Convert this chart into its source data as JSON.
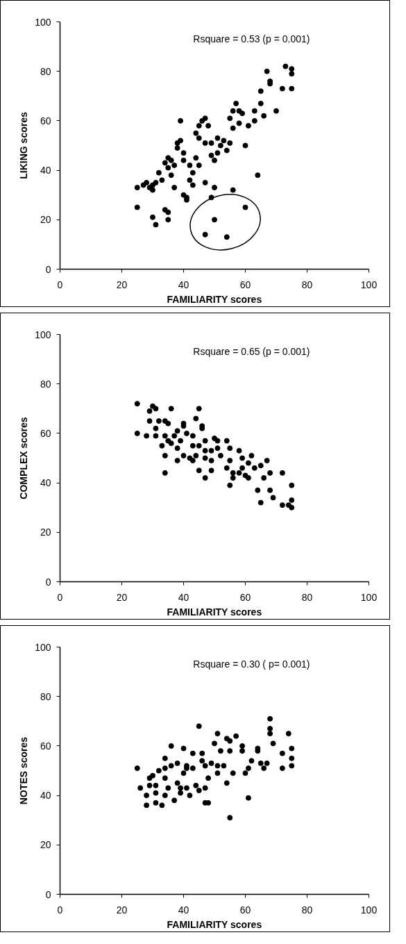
{
  "chart_data": [
    {
      "type": "scatter",
      "xlabel": "FAMILIARITY scores",
      "ylabel": "LIKING scores",
      "annotations": [
        "Rsquare = 0.53 (p = 0.001)"
      ],
      "marker": "circle",
      "grid": false,
      "xlim": [
        0,
        100
      ],
      "ylim": [
        0,
        100
      ],
      "xticks": [
        0,
        20,
        40,
        60,
        80,
        100
      ],
      "yticks": [
        0,
        20,
        40,
        60,
        80,
        100
      ],
      "series": [
        {
          "color": "#000000",
          "x": [
            25,
            25,
            27,
            28,
            29,
            30,
            30,
            31,
            32,
            33,
            30,
            31,
            34,
            35,
            35,
            34,
            35,
            35,
            36,
            36,
            37,
            37,
            38,
            38,
            39,
            39,
            40,
            40,
            40,
            41,
            41,
            42,
            42,
            43,
            43,
            44,
            44,
            45,
            45,
            45,
            46,
            47,
            47,
            47,
            48,
            49,
            49,
            50,
            51,
            51,
            52,
            53,
            54,
            55,
            55,
            56,
            56,
            57,
            58,
            58,
            59,
            60,
            61,
            63,
            63,
            64,
            65,
            65,
            66,
            67,
            68,
            68,
            70,
            72,
            73,
            75,
            75,
            75,
            49,
            50,
            56,
            47,
            50,
            54,
            60
          ],
          "values": [
            25,
            33,
            34,
            35,
            33,
            32,
            34,
            35,
            39,
            36,
            21,
            18,
            24,
            23,
            20,
            43,
            41,
            45,
            44,
            38,
            42,
            33,
            49,
            51,
            52,
            60,
            47,
            44,
            30,
            29,
            28,
            42,
            36,
            39,
            34,
            55,
            45,
            58,
            53,
            42,
            60,
            61,
            51,
            35,
            58,
            46,
            51,
            44,
            47,
            53,
            50,
            52,
            48,
            51,
            61,
            57,
            64,
            67,
            64,
            59,
            63,
            50,
            58,
            64,
            60,
            38,
            67,
            72,
            62,
            80,
            76,
            75,
            64,
            73,
            82,
            79,
            81,
            73,
            29,
            33,
            32,
            14,
            20,
            13,
            25
          ]
        }
      ]
    },
    {
      "type": "scatter",
      "xlabel": "FAMILIARITY scores",
      "ylabel": "COMPLEX scores",
      "annotations": [
        "Rsquare = 0.65 (p = 0.001)"
      ],
      "marker": "circle",
      "grid": false,
      "xlim": [
        0,
        100
      ],
      "ylim": [
        0,
        100
      ],
      "xticks": [
        0,
        20,
        40,
        60,
        80,
        100
      ],
      "yticks": [
        0,
        20,
        40,
        60,
        80,
        100
      ],
      "series": [
        {
          "color": "#000000",
          "x": [
            25,
            25,
            28,
            29,
            29,
            30,
            31,
            31,
            31,
            32,
            33,
            34,
            34,
            34,
            35,
            34,
            35,
            36,
            36,
            37,
            38,
            38,
            38,
            39,
            40,
            40,
            41,
            40,
            42,
            43,
            43,
            44,
            43,
            44,
            45,
            46,
            46,
            45,
            45,
            47,
            47,
            47,
            47,
            49,
            49,
            49,
            50,
            51,
            51,
            52,
            54,
            54,
            55,
            55,
            55,
            56,
            56,
            58,
            58,
            59,
            59,
            60,
            61,
            61,
            62,
            63,
            64,
            65,
            65,
            66,
            67,
            68,
            68,
            69,
            72,
            72,
            75,
            75,
            75,
            74
          ],
          "values": [
            72,
            60,
            59,
            65,
            69,
            71,
            70,
            62,
            59,
            65,
            55,
            51,
            44,
            65,
            64,
            59,
            57,
            56,
            70,
            59,
            61,
            54,
            49,
            57,
            64,
            63,
            60,
            51,
            50,
            49,
            59,
            66,
            55,
            51,
            70,
            62,
            63,
            45,
            55,
            53,
            42,
            57,
            50,
            45,
            53,
            49,
            58,
            57,
            54,
            51,
            57,
            46,
            49,
            54,
            39,
            44,
            42,
            53,
            44,
            50,
            46,
            43,
            42,
            48,
            51,
            46,
            37,
            47,
            32,
            42,
            49,
            37,
            44,
            34,
            44,
            31,
            39,
            33,
            30,
            31
          ]
        }
      ]
    },
    {
      "type": "scatter",
      "xlabel": "FAMILIARITY scores",
      "ylabel": "NOTES scores",
      "annotations": [
        "Rsquare = 0.30 ( p= 0.001)"
      ],
      "marker": "circle",
      "grid": false,
      "xlim": [
        0,
        100
      ],
      "ylim": [
        0,
        100
      ],
      "xticks": [
        0,
        20,
        40,
        60,
        80,
        100
      ],
      "yticks": [
        0,
        20,
        40,
        60,
        80,
        100
      ],
      "series": [
        {
          "color": "#000000",
          "x": [
            25,
            26,
            28,
            28,
            29,
            29,
            30,
            31,
            31,
            32,
            31,
            33,
            34,
            34,
            34,
            34,
            35,
            36,
            36,
            37,
            38,
            38,
            39,
            39,
            40,
            40,
            41,
            41,
            41,
            42,
            43,
            43,
            44,
            45,
            45,
            46,
            46,
            47,
            47,
            47,
            48,
            48,
            49,
            50,
            51,
            51,
            51,
            52,
            53,
            54,
            54,
            55,
            55,
            55,
            56,
            57,
            59,
            59,
            60,
            61,
            61,
            62,
            64,
            64,
            65,
            66,
            67,
            68,
            68,
            68,
            69,
            72,
            72,
            74,
            75,
            75,
            75
          ],
          "values": [
            51,
            43,
            36,
            40,
            44,
            47,
            48,
            37,
            41,
            50,
            44,
            36,
            40,
            51,
            55,
            47,
            43,
            60,
            52,
            38,
            53,
            45,
            43,
            41,
            49,
            59,
            51,
            52,
            43,
            40,
            51,
            57,
            44,
            68,
            42,
            54,
            57,
            37,
            43,
            52,
            37,
            47,
            53,
            61,
            49,
            65,
            52,
            58,
            52,
            63,
            45,
            58,
            62,
            31,
            49,
            64,
            58,
            60,
            49,
            39,
            51,
            54,
            59,
            58,
            53,
            51,
            53,
            71,
            65,
            67,
            61,
            57,
            51,
            65,
            59,
            55,
            52
          ]
        }
      ]
    }
  ]
}
